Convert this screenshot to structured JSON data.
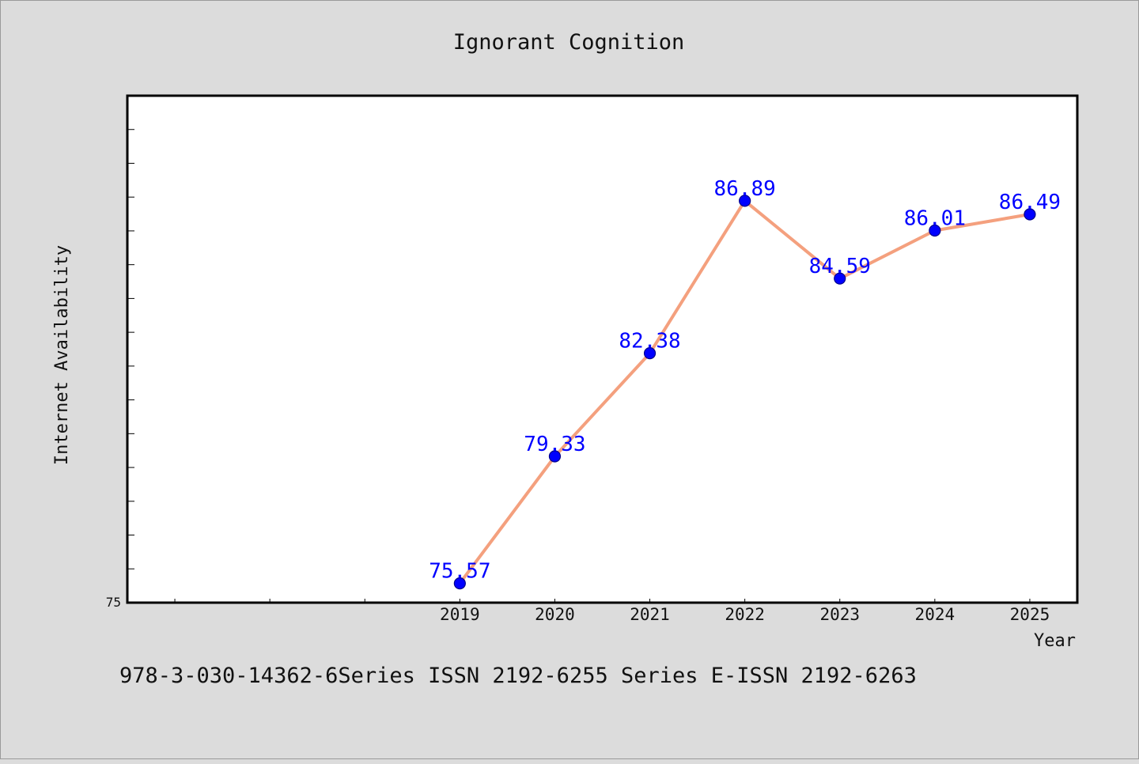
{
  "colors": {
    "background": "#dcdcdc",
    "plot_background": "#ffffff",
    "axes": "#000000",
    "line": "#f4a07e",
    "marker": "#0000ff",
    "label": "#0000ff"
  },
  "footer": "978-3-030-14362-6Series ISSN 2192-6255 Series E-ISSN 2192-6263",
  "chart_data": {
    "type": "line",
    "title": "Ignorant Cognition",
    "xlabel": "Year",
    "ylabel": "Internet Availability",
    "x": [
      2019,
      2020,
      2021,
      2022,
      2023,
      2024,
      2025
    ],
    "x_tick_labels": [
      "2019",
      "2020",
      "2021",
      "2022",
      "2023",
      "2024",
      "2025"
    ],
    "xlim": [
      2015.5,
      2025.5
    ],
    "y_tick_labels": [
      "75"
    ],
    "ylim": [
      75,
      90
    ],
    "series": [
      {
        "values": [
          75.57,
          79.33,
          82.38,
          86.89,
          84.59,
          86.01,
          86.49
        ],
        "data_labels": [
          "75.57",
          "79.33",
          "82.38",
          "86.89",
          "84.59",
          "86.01",
          "86.49"
        ]
      }
    ],
    "grid": false,
    "legend": "none"
  }
}
